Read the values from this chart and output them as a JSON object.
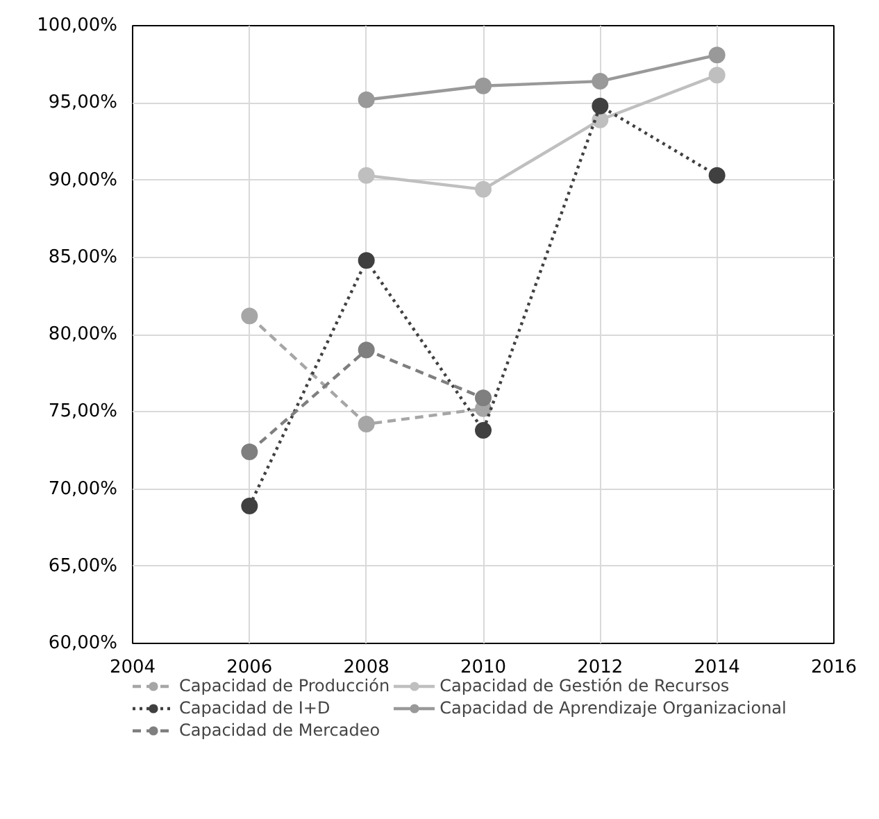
{
  "chart_data": {
    "type": "line",
    "x": [
      2006,
      2008,
      2010,
      2012,
      2014
    ],
    "xlim": [
      2004,
      2016
    ],
    "xticks": [
      2004,
      2006,
      2008,
      2010,
      2012,
      2014,
      2016
    ],
    "ylim": [
      60,
      100
    ],
    "yticks": [
      {
        "value": 60,
        "label": "60,00%"
      },
      {
        "value": 65,
        "label": "65,00%"
      },
      {
        "value": 70,
        "label": "70,00%"
      },
      {
        "value": 75,
        "label": "75,00%"
      },
      {
        "value": 80,
        "label": "80,00%"
      },
      {
        "value": 85,
        "label": "85,00%"
      },
      {
        "value": 90,
        "label": "90,00%"
      },
      {
        "value": 95,
        "label": "95,00%"
      },
      {
        "value": 100,
        "label": "100,00%"
      }
    ],
    "grid": true,
    "legend": "bottom",
    "marker": "circle",
    "series": [
      {
        "name": "Capacidad de Producción",
        "color": "#a6a6a6",
        "line_style": "dashed",
        "values": [
          81.2,
          74.2,
          75.2,
          null,
          null
        ]
      },
      {
        "name": "Capacidad de Gestión de Recursos",
        "color": "#bfbfbf",
        "line_style": "solid",
        "values": [
          null,
          90.3,
          89.4,
          93.9,
          96.8
        ]
      },
      {
        "name": "Capacidad de I+D",
        "color": "#404040",
        "line_style": "dotted",
        "values": [
          68.9,
          84.8,
          73.8,
          94.8,
          90.3
        ]
      },
      {
        "name": "Capacidad de Aprendizaje Organizacional",
        "color": "#999999",
        "line_style": "solid",
        "values": [
          null,
          95.2,
          96.1,
          96.4,
          98.1
        ]
      },
      {
        "name": "Capacidad de Mercadeo",
        "color": "#7f7f7f",
        "line_style": "dashed",
        "values": [
          72.4,
          79.0,
          75.9,
          null,
          null
        ]
      }
    ]
  }
}
